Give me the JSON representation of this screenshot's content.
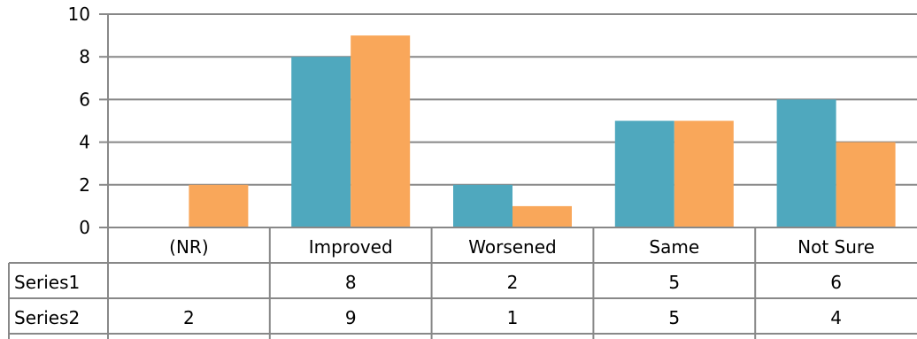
{
  "chart_data": {
    "type": "bar",
    "categories": [
      "(NR)",
      "Improved",
      "Worsened",
      "Same",
      "Not Sure"
    ],
    "series": [
      {
        "name": "Series1",
        "values": [
          null,
          8,
          2,
          5,
          6
        ],
        "color": "#4FA8BE"
      },
      {
        "name": "Series2",
        "values": [
          2,
          9,
          1,
          5,
          4
        ],
        "color": "#F9A75A"
      }
    ],
    "ylim": [
      0,
      10
    ],
    "yticks": [
      0,
      2,
      4,
      6,
      8,
      10
    ],
    "grid": true,
    "legend": "none",
    "data_table": true,
    "gridline_color": "#878787",
    "axis_color": "#888888"
  }
}
